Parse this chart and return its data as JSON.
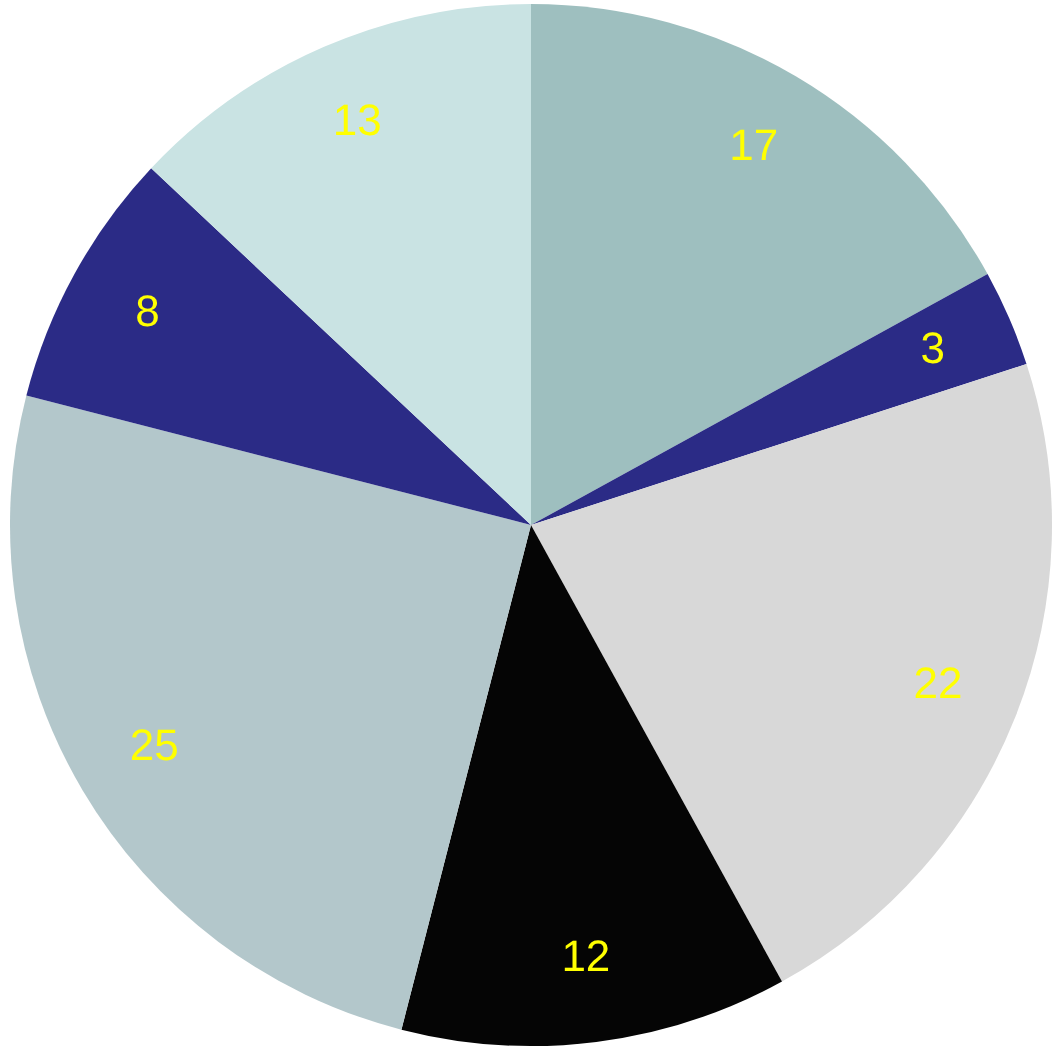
{
  "chart_data": {
    "type": "pie",
    "categories": [
      null,
      null,
      null,
      null,
      null,
      null,
      null
    ],
    "values": [
      17,
      3,
      22,
      12,
      25,
      8,
      13
    ],
    "colors": [
      "#9ebfbf",
      "#2b2b86",
      "#d8d8d8",
      "#050505",
      "#b3c7cb",
      "#2b2b86",
      "#c9e3e3"
    ],
    "data_labels": true,
    "legend": false
  }
}
